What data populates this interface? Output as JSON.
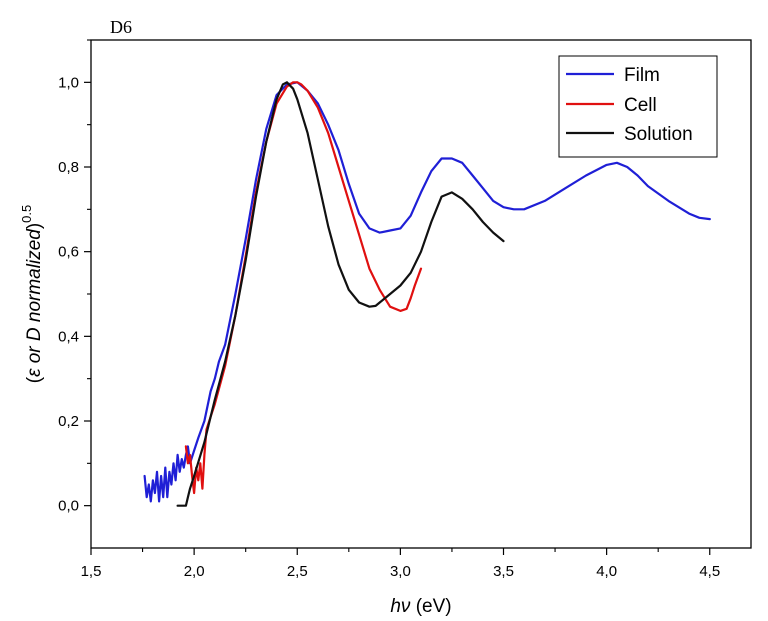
{
  "chart_data": {
    "type": "line",
    "panel_label": "D6",
    "xlabel": {
      "italic": "hν",
      "normal": " (eV)"
    },
    "ylabel": {
      "open": "(",
      "italic": "ε or D normalized",
      "close": ")",
      "sup": "0.5"
    },
    "xlim": [
      1.5,
      4.7
    ],
    "ylim": [
      -0.1,
      1.1
    ],
    "x_ticks": [
      1.5,
      2.0,
      2.5,
      3.0,
      3.5,
      4.0,
      4.5
    ],
    "x_tick_labels": [
      "1,5",
      "2,0",
      "2,5",
      "3,0",
      "3,5",
      "4,0",
      "4,5"
    ],
    "y_ticks": [
      0.0,
      0.2,
      0.4,
      0.6,
      0.8,
      1.0
    ],
    "y_tick_labels": [
      "0,0",
      "0,2",
      "0,4",
      "0,6",
      "0,8",
      "1,0"
    ],
    "grid": false,
    "legend_position": "top-right",
    "series": [
      {
        "name": "Film",
        "color": "#1f1fd6",
        "x": [
          1.76,
          1.77,
          1.78,
          1.79,
          1.8,
          1.81,
          1.82,
          1.83,
          1.84,
          1.85,
          1.86,
          1.87,
          1.88,
          1.89,
          1.9,
          1.91,
          1.92,
          1.93,
          1.94,
          1.95,
          1.96,
          1.97,
          1.98,
          2.0,
          2.02,
          2.05,
          2.08,
          2.1,
          2.12,
          2.15,
          2.2,
          2.25,
          2.3,
          2.35,
          2.4,
          2.45,
          2.5,
          2.55,
          2.6,
          2.65,
          2.7,
          2.75,
          2.8,
          2.85,
          2.9,
          2.95,
          3.0,
          3.05,
          3.1,
          3.15,
          3.2,
          3.25,
          3.3,
          3.35,
          3.4,
          3.45,
          3.5,
          3.55,
          3.6,
          3.7,
          3.8,
          3.9,
          4.0,
          4.05,
          4.1,
          4.15,
          4.2,
          4.3,
          4.4,
          4.45,
          4.5
        ],
        "y": [
          0.07,
          0.02,
          0.05,
          0.01,
          0.06,
          0.03,
          0.08,
          0.01,
          0.07,
          0.02,
          0.09,
          0.02,
          0.08,
          0.05,
          0.1,
          0.06,
          0.12,
          0.08,
          0.11,
          0.09,
          0.12,
          0.14,
          0.1,
          0.13,
          0.16,
          0.2,
          0.27,
          0.3,
          0.34,
          0.38,
          0.5,
          0.63,
          0.77,
          0.89,
          0.97,
          0.995,
          1.0,
          0.98,
          0.95,
          0.9,
          0.84,
          0.76,
          0.69,
          0.655,
          0.645,
          0.65,
          0.655,
          0.685,
          0.74,
          0.79,
          0.82,
          0.82,
          0.81,
          0.78,
          0.75,
          0.72,
          0.705,
          0.7,
          0.7,
          0.72,
          0.75,
          0.78,
          0.805,
          0.81,
          0.8,
          0.78,
          0.755,
          0.72,
          0.69,
          0.68,
          0.677
        ]
      },
      {
        "name": "Cell",
        "color": "#e01010",
        "x": [
          1.96,
          1.97,
          1.98,
          1.99,
          2.0,
          2.01,
          2.02,
          2.03,
          2.04,
          2.05,
          2.06,
          2.08,
          2.1,
          2.15,
          2.2,
          2.25,
          2.3,
          2.35,
          2.4,
          2.45,
          2.48,
          2.5,
          2.52,
          2.55,
          2.6,
          2.65,
          2.7,
          2.75,
          2.8,
          2.85,
          2.9,
          2.95,
          3.0,
          3.03,
          3.05,
          3.07,
          3.1
        ],
        "y": [
          0.14,
          0.1,
          0.12,
          0.07,
          0.03,
          0.09,
          0.06,
          0.1,
          0.04,
          0.12,
          0.18,
          0.21,
          0.24,
          0.33,
          0.45,
          0.59,
          0.74,
          0.86,
          0.95,
          0.99,
          1.0,
          1.0,
          0.995,
          0.98,
          0.94,
          0.88,
          0.8,
          0.72,
          0.64,
          0.56,
          0.51,
          0.47,
          0.46,
          0.465,
          0.49,
          0.52,
          0.56
        ]
      },
      {
        "name": "Solution",
        "color": "#111111",
        "x": [
          1.92,
          1.94,
          1.96,
          1.97,
          1.98,
          2.0,
          2.05,
          2.1,
          2.15,
          2.2,
          2.25,
          2.3,
          2.35,
          2.4,
          2.43,
          2.45,
          2.48,
          2.5,
          2.55,
          2.6,
          2.65,
          2.7,
          2.75,
          2.8,
          2.85,
          2.88,
          2.9,
          2.95,
          3.0,
          3.05,
          3.1,
          3.15,
          3.2,
          3.25,
          3.3,
          3.35,
          3.4,
          3.45,
          3.5
        ],
        "y": [
          0.0,
          0.0,
          0.0,
          0.02,
          0.04,
          0.07,
          0.15,
          0.25,
          0.34,
          0.45,
          0.58,
          0.73,
          0.86,
          0.96,
          0.995,
          1.0,
          0.985,
          0.96,
          0.88,
          0.77,
          0.66,
          0.57,
          0.51,
          0.48,
          0.47,
          0.472,
          0.48,
          0.5,
          0.52,
          0.55,
          0.6,
          0.67,
          0.73,
          0.74,
          0.725,
          0.7,
          0.67,
          0.645,
          0.625
        ]
      }
    ]
  }
}
